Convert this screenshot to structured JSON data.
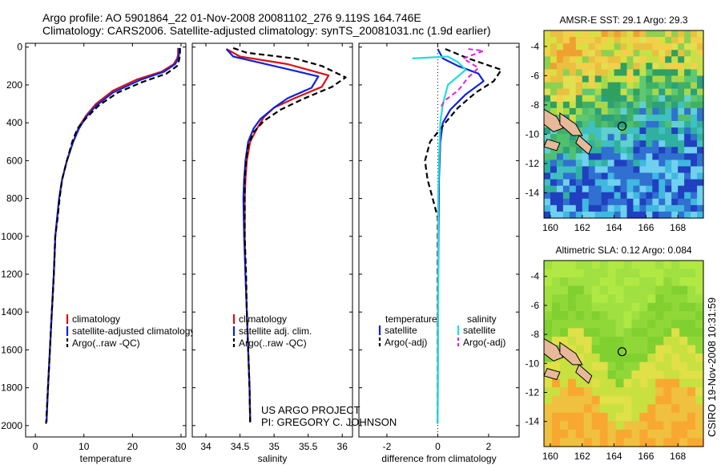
{
  "header": {
    "line1": "Argo profile: AO 5901864_22 01-Nov-2008 20081102_276 9.119S 164.746E",
    "line2": "Climatology: CARS2006. Satellite-adjusted climatology: synTS_20081031.nc (1.9d earlier)"
  },
  "side_label": "CSIRO 19-Nov-2008 10:31:59",
  "project_note": [
    "US ARGO PROJECT",
    "PI: GREGORY C. JOHNSON"
  ],
  "colors": {
    "climatology": "#dd1111",
    "satellite_adj": "#1122dd",
    "argo": "#000000",
    "salinity_sat": "#22dddd",
    "salinity_argo": "#dd22dd"
  },
  "chart_data": [
    {
      "id": "temperature",
      "type": "line",
      "xlabel": "temperature",
      "ylabel": "",
      "xlim": [
        -2,
        31
      ],
      "ylim": [
        2060,
        -20
      ],
      "xticks": [
        0,
        10,
        20,
        30
      ],
      "yticks": [
        0,
        200,
        400,
        600,
        800,
        1000,
        1200,
        1400,
        1600,
        1800,
        2000
      ],
      "legend": [
        "climatology",
        "satellite-adjusted climatology",
        "Argo(..raw -QC)"
      ],
      "series": [
        {
          "name": "climatology",
          "style": "red",
          "points": [
            [
              29.4,
              5
            ],
            [
              29.4,
              40
            ],
            [
              29.2,
              60
            ],
            [
              28.5,
              90
            ],
            [
              26,
              130
            ],
            [
              21,
              170
            ],
            [
              16,
              230
            ],
            [
              12.5,
              300
            ],
            [
              10.5,
              360
            ],
            [
              9,
              420
            ],
            [
              7.8,
              500
            ],
            [
              6.5,
              600
            ],
            [
              5.5,
              700
            ],
            [
              4.9,
              800
            ],
            [
              4.5,
              900
            ],
            [
              4.1,
              1000
            ],
            [
              3.8,
              1200
            ],
            [
              3.4,
              1400
            ],
            [
              3.0,
              1600
            ],
            [
              2.6,
              1800
            ],
            [
              2.3,
              1980
            ]
          ]
        },
        {
          "name": "satellite-adjusted climatology",
          "style": "blue",
          "points": [
            [
              29.6,
              5
            ],
            [
              29.6,
              40
            ],
            [
              29.4,
              60
            ],
            [
              28.8,
              90
            ],
            [
              26.5,
              130
            ],
            [
              21.5,
              175
            ],
            [
              16,
              240
            ],
            [
              12.5,
              310
            ],
            [
              10.4,
              370
            ],
            [
              9,
              430
            ],
            [
              7.8,
              500
            ],
            [
              6.5,
              600
            ],
            [
              5.5,
              700
            ],
            [
              4.9,
              800
            ],
            [
              4.5,
              900
            ],
            [
              4.1,
              1000
            ],
            [
              3.8,
              1200
            ],
            [
              3.4,
              1400
            ],
            [
              3.0,
              1600
            ],
            [
              2.6,
              1800
            ],
            [
              2.3,
              1980
            ]
          ]
        },
        {
          "name": "Argo(..raw -QC)",
          "style": "black-dash",
          "points": [
            [
              29.8,
              5
            ],
            [
              29.8,
              40
            ],
            [
              29.6,
              70
            ],
            [
              29.2,
              100
            ],
            [
              27,
              140
            ],
            [
              22,
              185
            ],
            [
              17,
              240
            ],
            [
              13,
              310
            ],
            [
              10.3,
              380
            ],
            [
              8.7,
              430
            ],
            [
              7.6,
              500
            ],
            [
              6.5,
              600
            ],
            [
              5.5,
              700
            ],
            [
              5,
              800
            ],
            [
              4.6,
              900
            ],
            [
              4.1,
              1000
            ],
            [
              3.8,
              1200
            ],
            [
              3.4,
              1400
            ],
            [
              3.0,
              1600
            ],
            [
              2.6,
              1800
            ],
            [
              2.2,
              1990
            ]
          ]
        }
      ]
    },
    {
      "id": "salinity",
      "type": "line",
      "xlabel": "salinity",
      "ylabel": "",
      "xlim": [
        33.8,
        36.15
      ],
      "ylim": [
        2060,
        -20
      ],
      "xticks": [
        34,
        34.5,
        35,
        35.5,
        36
      ],
      "xticklabels": [
        "34",
        "34.5",
        "35",
        "35.5",
        "36"
      ],
      "legend": [
        "climatology",
        "satellite adj. clim.",
        "Argo(..raw -QC)"
      ],
      "series": [
        {
          "name": "climatology",
          "style": "red",
          "points": [
            [
              34.3,
              10
            ],
            [
              34.5,
              50
            ],
            [
              35.2,
              90
            ],
            [
              35.8,
              150
            ],
            [
              35.7,
              210
            ],
            [
              35.3,
              270
            ],
            [
              35.0,
              320
            ],
            [
              34.85,
              370
            ],
            [
              34.75,
              430
            ],
            [
              34.65,
              500
            ],
            [
              34.6,
              600
            ],
            [
              34.58,
              700
            ],
            [
              34.57,
              800
            ],
            [
              34.57,
              1000
            ],
            [
              34.58,
              1200
            ],
            [
              34.6,
              1400
            ],
            [
              34.62,
              1600
            ],
            [
              34.64,
              1800
            ],
            [
              34.65,
              1980
            ]
          ]
        },
        {
          "name": "satellite adj. clim.",
          "style": "blue",
          "points": [
            [
              34.3,
              10
            ],
            [
              34.4,
              50
            ],
            [
              35.0,
              100
            ],
            [
              35.65,
              155
            ],
            [
              35.55,
              215
            ],
            [
              35.2,
              270
            ],
            [
              35.0,
              320
            ],
            [
              34.8,
              380
            ],
            [
              34.7,
              430
            ],
            [
              34.62,
              500
            ],
            [
              34.58,
              600
            ],
            [
              34.56,
              700
            ],
            [
              34.55,
              800
            ],
            [
              34.56,
              1000
            ],
            [
              34.58,
              1200
            ],
            [
              34.6,
              1400
            ],
            [
              34.62,
              1600
            ],
            [
              34.64,
              1800
            ],
            [
              34.65,
              1980
            ]
          ]
        },
        {
          "name": "Argo(..raw -QC)",
          "style": "black-dash",
          "points": [
            [
              34.4,
              5
            ],
            [
              34.6,
              30
            ],
            [
              35.3,
              60
            ],
            [
              35.7,
              100
            ],
            [
              36.05,
              160
            ],
            [
              35.85,
              210
            ],
            [
              35.45,
              270
            ],
            [
              35.1,
              330
            ],
            [
              34.85,
              390
            ],
            [
              34.7,
              450
            ],
            [
              34.62,
              520
            ],
            [
              34.59,
              600
            ],
            [
              34.57,
              700
            ],
            [
              34.57,
              800
            ],
            [
              34.57,
              1000
            ],
            [
              34.59,
              1200
            ],
            [
              34.6,
              1400
            ],
            [
              34.62,
              1600
            ],
            [
              34.64,
              1800
            ],
            [
              34.65,
              1990
            ]
          ]
        }
      ]
    },
    {
      "id": "difference",
      "type": "line",
      "xlabel": "difference from climatology",
      "ylabel": "",
      "xlim": [
        -3.1,
        3.2
      ],
      "ylim": [
        2060,
        -20
      ],
      "xticks": [
        -2,
        0,
        2
      ],
      "legend_headers": [
        "temperature",
        "salinity"
      ],
      "legend": [
        "satellite",
        "Argo(-adj)",
        "satellite",
        "Argo(-adj)"
      ],
      "series": [
        {
          "name": "temperature satellite",
          "style": "blue",
          "points": [
            [
              0,
              10
            ],
            [
              0.2,
              60
            ],
            [
              0.8,
              100
            ],
            [
              1.6,
              140
            ],
            [
              1.8,
              180
            ],
            [
              1.1,
              250
            ],
            [
              0.5,
              330
            ],
            [
              0.2,
              400
            ],
            [
              0.1,
              500
            ],
            [
              0.05,
              700
            ],
            [
              0.03,
              1000
            ],
            [
              0.01,
              1400
            ],
            [
              0,
              1990
            ]
          ]
        },
        {
          "name": "temperature Argo(-adj)",
          "style": "black-dash",
          "points": [
            [
              0.3,
              10
            ],
            [
              1.2,
              60
            ],
            [
              2.5,
              120
            ],
            [
              2.2,
              180
            ],
            [
              1.5,
              240
            ],
            [
              0.8,
              320
            ],
            [
              0.3,
              400
            ],
            [
              -0.3,
              500
            ],
            [
              -0.5,
              600
            ],
            [
              -0.4,
              700
            ],
            [
              -0.2,
              800
            ],
            [
              0,
              900
            ],
            [
              0,
              1000
            ],
            [
              0,
              1990
            ]
          ]
        },
        {
          "name": "salinity satellite",
          "style": "cyan",
          "points": [
            [
              -1.0,
              60
            ],
            [
              0.4,
              50
            ],
            [
              0.8,
              80
            ],
            [
              1.1,
              120
            ],
            [
              0.4,
              200
            ],
            [
              0.2,
              300
            ],
            [
              0.1,
              400
            ],
            [
              0.05,
              600
            ],
            [
              0.02,
              800
            ],
            [
              0.02,
              1200
            ],
            [
              0,
              1990
            ]
          ]
        },
        {
          "name": "salinity Argo(-adj)",
          "style": "magenta-dash",
          "points": [
            [
              1.2,
              10
            ],
            [
              1.8,
              20
            ],
            [
              1.0,
              60
            ],
            [
              1.6,
              110
            ],
            [
              1.2,
              160
            ],
            [
              0.8,
              230
            ],
            [
              0.3,
              280
            ],
            [
              0.1,
              320
            ]
          ]
        }
      ]
    }
  ],
  "maps": [
    {
      "id": "sst",
      "title": "AMSR-E SST: 29.1 Argo: 29.3",
      "xticks": [
        "160",
        "162",
        "164",
        "166",
        "168"
      ],
      "yticks": [
        "-4",
        "-6",
        "-8",
        "-10",
        "-12",
        "-14"
      ]
    },
    {
      "id": "sla",
      "title": "Altimetric SLA: 0.12 Argo: 0.084",
      "xticks": [
        "160",
        "162",
        "164",
        "166",
        "168"
      ],
      "yticks": [
        "-4",
        "-6",
        "-8",
        "-10",
        "-12",
        "-14"
      ]
    }
  ]
}
